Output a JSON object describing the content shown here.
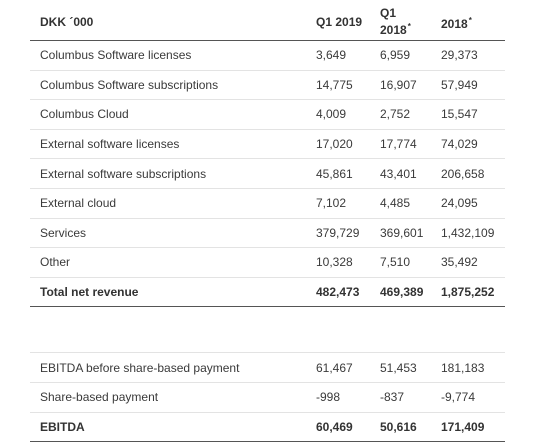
{
  "table": {
    "header": {
      "label": "DKK ´000",
      "col1": "Q1 2019",
      "col2_line1": "Q1",
      "col2_line2": "2018",
      "col2_mark": "*",
      "col3": "2018",
      "col3_mark": "*"
    },
    "rows": [
      {
        "label": "Columbus Software licenses",
        "v1": "3,649",
        "v2": "6,959",
        "v3": "29,373"
      },
      {
        "label": "Columbus Software subscriptions",
        "v1": "14,775",
        "v2": "16,907",
        "v3": "57,949"
      },
      {
        "label": "Columbus Cloud",
        "v1": "4,009",
        "v2": "2,752",
        "v3": "15,547"
      },
      {
        "label": "External software licenses",
        "v1": "17,020",
        "v2": "17,774",
        "v3": "74,029"
      },
      {
        "label": "External software subscriptions",
        "v1": "45,861",
        "v2": "43,401",
        "v3": "206,658"
      },
      {
        "label": "External cloud",
        "v1": "7,102",
        "v2": "4,485",
        "v3": "24,095"
      },
      {
        "label": "Services",
        "v1": "379,729",
        "v2": "369,601",
        "v3": "1,432,109"
      },
      {
        "label": "Other",
        "v1": "10,328",
        "v2": "7,510",
        "v3": "35,492"
      },
      {
        "label": "Total net revenue",
        "v1": "482,473",
        "v2": "469,389",
        "v3": "1,875,252"
      },
      {
        "label": "EBITDA before share-based payment",
        "v1": "61,467",
        "v2": "51,453",
        "v3": "181,183"
      },
      {
        "label": "Share-based payment",
        "v1": "-998",
        "v2": "-837",
        "v3": "-9,774"
      },
      {
        "label": "EBITDA",
        "v1": "60,469",
        "v2": "50,616",
        "v3": "171,409"
      }
    ]
  }
}
